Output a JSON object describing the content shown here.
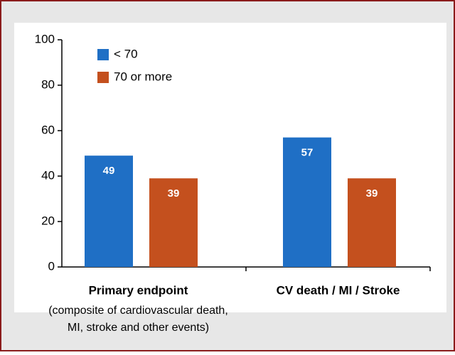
{
  "chart_data": {
    "type": "bar",
    "categories": [
      "Primary endpoint",
      "CV death / MI / Stroke"
    ],
    "category_sublabels": [
      [
        "(composite of cardiovascular death,",
        "MI, stroke and other events)"
      ],
      []
    ],
    "series": [
      {
        "name": "< 70",
        "color": "#1f6fc5",
        "values": [
          49,
          57
        ]
      },
      {
        "name": "70 or more",
        "color": "#c4501e",
        "values": [
          39,
          39
        ]
      }
    ],
    "ylim": [
      0,
      100
    ],
    "yticks": [
      0,
      20,
      40,
      60,
      80,
      100
    ],
    "grid": false,
    "legend": "top-left"
  }
}
